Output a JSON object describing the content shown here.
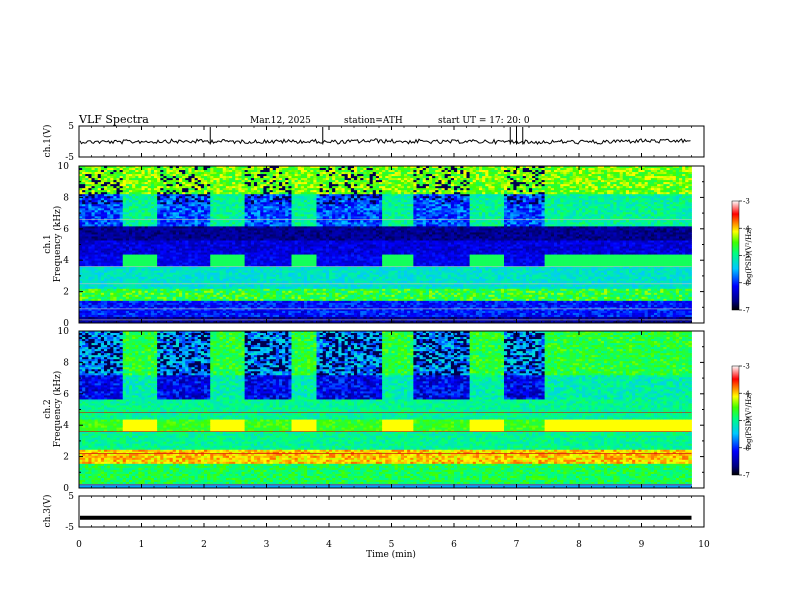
{
  "header": {
    "title": "VLF  Spectra",
    "date": "Mar.12, 2025",
    "station": "station=ATH",
    "start": "start  UT  =    17: 20: 0"
  },
  "chart_data": [
    {
      "type": "line",
      "panel": "ch1-waveform",
      "ylabel": "ch.1(V)",
      "ylim": [
        -5,
        5
      ],
      "ytick_labels": [
        "5",
        "-5"
      ],
      "xlim": [
        0,
        10
      ],
      "trace_level_V": 0,
      "trace_extent_min": 9.8,
      "spike_times_min": [
        2.1,
        3.9,
        6.9,
        7.0,
        7.1
      ]
    },
    {
      "type": "heatmap",
      "panel": "ch1-spectrogram",
      "ylabel": "ch.1\nFrequency (kHz)",
      "ylim": [
        0,
        10
      ],
      "ytick_labels": [
        "0",
        "2",
        "4",
        "6",
        "8",
        "10"
      ],
      "xlim": [
        0,
        10
      ],
      "xtick_labels": [
        "0",
        "1",
        "2",
        "3",
        "4",
        "5",
        "6",
        "7",
        "8",
        "9",
        "10"
      ],
      "data_extent_min": 9.8,
      "colorbar": {
        "label": "log(PSD)(V²/Hz)",
        "range": [
          -7,
          -3
        ],
        "tick_labels": [
          "-3",
          "-4",
          "-5",
          "-6",
          "-7"
        ]
      }
    },
    {
      "type": "heatmap",
      "panel": "ch2-spectrogram",
      "ylabel": "ch.2\nFrequency (kHz)",
      "ylim": [
        0,
        10
      ],
      "ytick_labels": [
        "0",
        "2",
        "4",
        "6",
        "8",
        "10"
      ],
      "xlim": [
        0,
        10
      ],
      "xtick_labels": [
        "0",
        "1",
        "2",
        "3",
        "4",
        "5",
        "6",
        "7",
        "8",
        "9",
        "10"
      ],
      "data_extent_min": 9.8,
      "colorbar": {
        "label": "log(PSD)(V²/Hz)",
        "range": [
          -7,
          -3
        ],
        "tick_labels": [
          "-3",
          "-4",
          "-5",
          "-6",
          "-7"
        ]
      }
    },
    {
      "type": "line",
      "panel": "ch3-waveform",
      "ylabel": "ch.3(V)",
      "ylim": [
        -5,
        5
      ],
      "ytick_labels": [
        "5",
        "-5"
      ],
      "xlim": [
        0,
        10
      ],
      "xlabel": "Time  (min)",
      "xtick_labels": [
        "0",
        "1",
        "2",
        "3",
        "4",
        "5",
        "6",
        "7",
        "8",
        "9",
        "10"
      ],
      "trace_level_V": -2,
      "trace_extent_min": 9.8
    }
  ]
}
